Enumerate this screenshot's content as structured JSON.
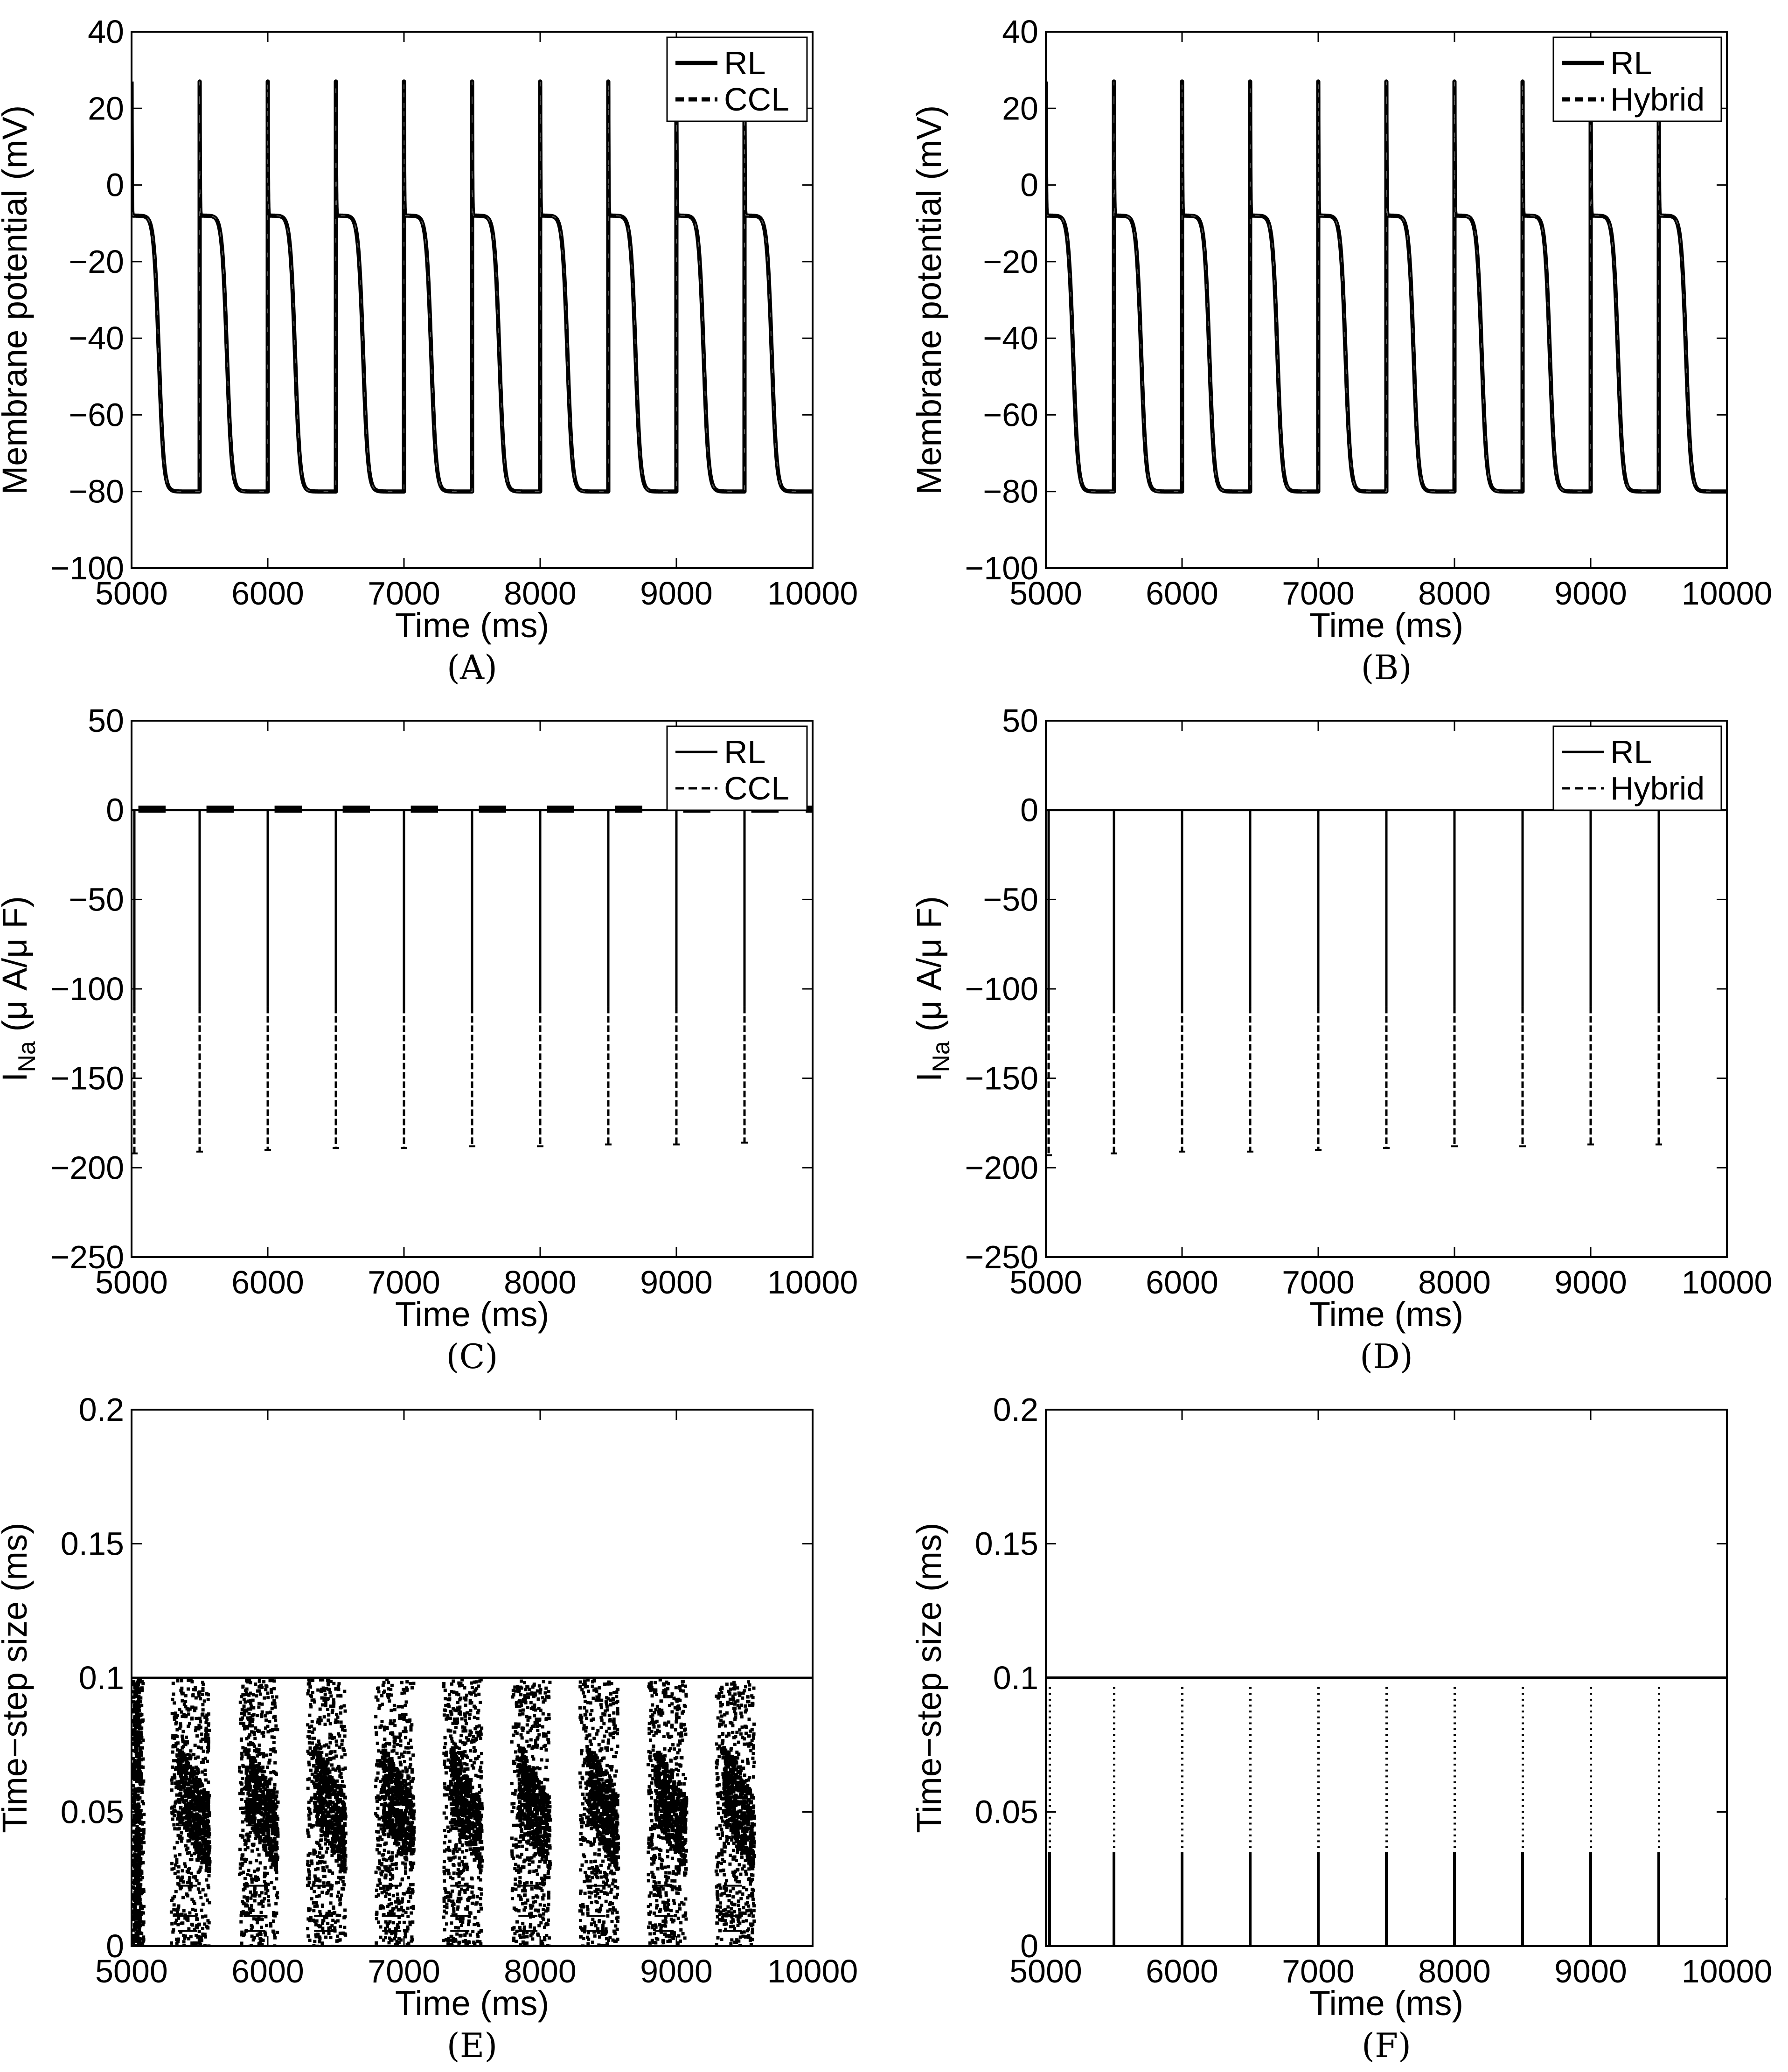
{
  "chart_data": [
    {
      "id": "A",
      "type": "line",
      "panel_label": "(A)",
      "xlabel": "Time (ms)",
      "ylabel": "Membrane potential (mV)",
      "xlim": [
        5000,
        10000
      ],
      "ylim": [
        -100,
        40
      ],
      "xticks": [
        5000,
        6000,
        7000,
        8000,
        9000,
        10000
      ],
      "xtick_labels": [
        "5000",
        "6000",
        "7000",
        "8000",
        "9000",
        "10000"
      ],
      "yticks": [
        -100,
        -80,
        -60,
        -40,
        -20,
        0,
        20,
        40
      ],
      "ytick_labels": [
        "−100",
        "−80",
        "−60",
        "−40",
        "−20",
        "0",
        "20",
        "40"
      ],
      "legend": {
        "position": "top-right",
        "entries": [
          {
            "label": "RL",
            "style": "solid"
          },
          {
            "label": "CCL",
            "style": "dashed"
          }
        ]
      },
      "signal": {
        "kind": "action_potential",
        "beat_starts_ms": [
          5000,
          5500,
          6000,
          6500,
          7000,
          7500,
          8000,
          8500,
          9000,
          9500
        ],
        "peak_mv": 27,
        "plateau_mv": -8,
        "rest_mv": -80,
        "repol_mid_ms": 200
      }
    },
    {
      "id": "B",
      "type": "line",
      "panel_label": "(B)",
      "xlabel": "Time (ms)",
      "ylabel": "Membrane potential (mV)",
      "xlim": [
        5000,
        10000
      ],
      "ylim": [
        -100,
        40
      ],
      "xticks": [
        5000,
        6000,
        7000,
        8000,
        9000,
        10000
      ],
      "xtick_labels": [
        "5000",
        "6000",
        "7000",
        "8000",
        "9000",
        "10000"
      ],
      "yticks": [
        -100,
        -80,
        -60,
        -40,
        -20,
        0,
        20,
        40
      ],
      "ytick_labels": [
        "−100",
        "−80",
        "−60",
        "−40",
        "−20",
        "0",
        "20",
        "40"
      ],
      "legend": {
        "position": "top-right",
        "entries": [
          {
            "label": "RL",
            "style": "solid"
          },
          {
            "label": "Hybrid",
            "style": "dashed"
          }
        ]
      },
      "signal": {
        "kind": "action_potential",
        "beat_starts_ms": [
          5000,
          5500,
          6000,
          6500,
          7000,
          7500,
          8000,
          8500,
          9000,
          9500
        ],
        "peak_mv": 27,
        "plateau_mv": -8,
        "rest_mv": -80,
        "repol_mid_ms": 200
      }
    },
    {
      "id": "C",
      "type": "line",
      "panel_label": "(C)",
      "xlabel": "Time (ms)",
      "ylabel": "I",
      "ylabel_sub": "Na",
      "ylabel_rest": " (μ A/μ F)",
      "xlim": [
        5000,
        10000
      ],
      "ylim": [
        -250,
        50
      ],
      "xticks": [
        5000,
        6000,
        7000,
        8000,
        9000,
        10000
      ],
      "xtick_labels": [
        "5000",
        "6000",
        "7000",
        "8000",
        "9000",
        "10000"
      ],
      "yticks": [
        -250,
        -200,
        -150,
        -100,
        -50,
        0,
        50
      ],
      "ytick_labels": [
        "−250",
        "−200",
        "−150",
        "−100",
        "−50",
        "0",
        "50"
      ],
      "legend": {
        "position": "top-right",
        "entries": [
          {
            "label": "RL",
            "style": "solid"
          },
          {
            "label": "CCL",
            "style": "dashed"
          }
        ]
      },
      "signal": {
        "kind": "spikes",
        "baseline": 0,
        "noisy_baseline": true,
        "spikes": [
          {
            "x": 5000,
            "y": -192
          },
          {
            "x": 5500,
            "y": -191
          },
          {
            "x": 6000,
            "y": -190
          },
          {
            "x": 6500,
            "y": -189
          },
          {
            "x": 7000,
            "y": -189
          },
          {
            "x": 7500,
            "y": -188
          },
          {
            "x": 8000,
            "y": -188
          },
          {
            "x": 8500,
            "y": -187
          },
          {
            "x": 9000,
            "y": -187
          },
          {
            "x": 9500,
            "y": -186
          }
        ]
      }
    },
    {
      "id": "D",
      "type": "line",
      "panel_label": "(D)",
      "xlabel": "Time (ms)",
      "ylabel": "I",
      "ylabel_sub": "Na",
      "ylabel_rest": " (μ A/μ F)",
      "xlim": [
        5000,
        10000
      ],
      "ylim": [
        -250,
        50
      ],
      "xticks": [
        5000,
        6000,
        7000,
        8000,
        9000,
        10000
      ],
      "xtick_labels": [
        "5000",
        "6000",
        "7000",
        "8000",
        "9000",
        "10000"
      ],
      "yticks": [
        -250,
        -200,
        -150,
        -100,
        -50,
        0,
        50
      ],
      "ytick_labels": [
        "−250",
        "−200",
        "−150",
        "−100",
        "−50",
        "0",
        "50"
      ],
      "legend": {
        "position": "top-right",
        "entries": [
          {
            "label": "RL",
            "style": "solid"
          },
          {
            "label": "Hybrid",
            "style": "dashed"
          }
        ]
      },
      "signal": {
        "kind": "spikes",
        "baseline": 0,
        "noisy_baseline": false,
        "spikes": [
          {
            "x": 5000,
            "y": -193
          },
          {
            "x": 5500,
            "y": -192
          },
          {
            "x": 6000,
            "y": -191
          },
          {
            "x": 6500,
            "y": -191
          },
          {
            "x": 7000,
            "y": -190
          },
          {
            "x": 7500,
            "y": -189
          },
          {
            "x": 8000,
            "y": -188
          },
          {
            "x": 8500,
            "y": -188
          },
          {
            "x": 9000,
            "y": -187
          },
          {
            "x": 9500,
            "y": -187
          }
        ]
      }
    },
    {
      "id": "E",
      "type": "scatter",
      "panel_label": "(E)",
      "xlabel": "Time (ms)",
      "ylabel": "Time−step size (ms)",
      "xlim": [
        5000,
        10000
      ],
      "ylim": [
        0,
        0.2
      ],
      "xticks": [
        5000,
        6000,
        7000,
        8000,
        9000,
        10000
      ],
      "xtick_labels": [
        "5000",
        "6000",
        "7000",
        "8000",
        "9000",
        "10000"
      ],
      "yticks": [
        0,
        0.05,
        0.1,
        0.15,
        0.2
      ],
      "ytick_labels": [
        "0",
        "0.05",
        "0.1",
        "0.15",
        "0.2"
      ],
      "signal": {
        "kind": "adaptive_dense",
        "max_dt": 0.1,
        "beat_starts_ms": [
          5000,
          5500,
          6000,
          6500,
          7000,
          7500,
          8000,
          8500,
          9000,
          9500
        ],
        "levels": [
          0.00625,
          0.0125,
          0.025,
          0.05
        ],
        "plateau_band": [
          0.025,
          0.075
        ]
      }
    },
    {
      "id": "F",
      "type": "scatter",
      "panel_label": "(F)",
      "xlabel": "Time (ms)",
      "ylabel": "Time−step size (ms)",
      "xlim": [
        5000,
        10000
      ],
      "ylim": [
        0,
        0.2
      ],
      "xticks": [
        5000,
        6000,
        7000,
        8000,
        9000,
        10000
      ],
      "xtick_labels": [
        "5000",
        "6000",
        "7000",
        "8000",
        "9000",
        "10000"
      ],
      "yticks": [
        0,
        0.05,
        0.1,
        0.15,
        0.2
      ],
      "ytick_labels": [
        "0",
        "0.05",
        "0.1",
        "0.15",
        "0.2"
      ],
      "signal": {
        "kind": "adaptive_sparse",
        "max_dt": 0.1,
        "beat_starts_ms": [
          5000,
          5500,
          6000,
          6500,
          7000,
          7500,
          8000,
          8500,
          9000,
          9500
        ]
      }
    }
  ]
}
